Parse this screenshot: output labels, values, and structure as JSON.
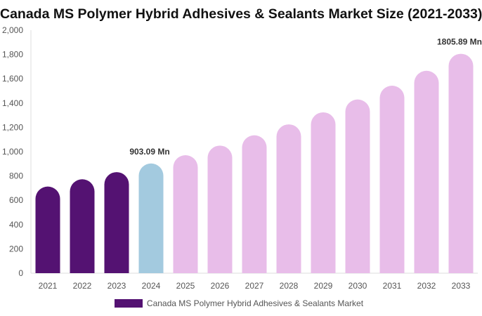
{
  "chart_data": {
    "type": "bar",
    "title": "Canada MS Polymer Hybrid Adhesives & Sealants Market Size (2021-2033)",
    "categories": [
      "2021",
      "2022",
      "2023",
      "2024",
      "2025",
      "2026",
      "2027",
      "2028",
      "2029",
      "2030",
      "2031",
      "2032",
      "2033"
    ],
    "series": [
      {
        "name": "Canada MS Polymer Hybrid Adhesives & Sealants Market",
        "values": [
          713,
          773,
          832,
          903.09,
          971,
          1050,
          1135,
          1225,
          1324,
          1430,
          1543,
          1666,
          1805.89
        ]
      }
    ],
    "data_labels": [
      {
        "category": "2024",
        "text": "903.09 Mn"
      },
      {
        "category": "2033",
        "text": "1805.89 Mn"
      }
    ],
    "yticks": [
      "0",
      "200",
      "400",
      "600",
      "800",
      "1,000",
      "1,200",
      "1,400",
      "1,600",
      "1,800",
      "2,000"
    ],
    "ylim": [
      0,
      2000
    ],
    "grid": false,
    "legend_position": "bottom",
    "colors": {
      "historical": "#541272",
      "base_year": "#a3cadf",
      "forecast": "#e8bde9"
    }
  }
}
